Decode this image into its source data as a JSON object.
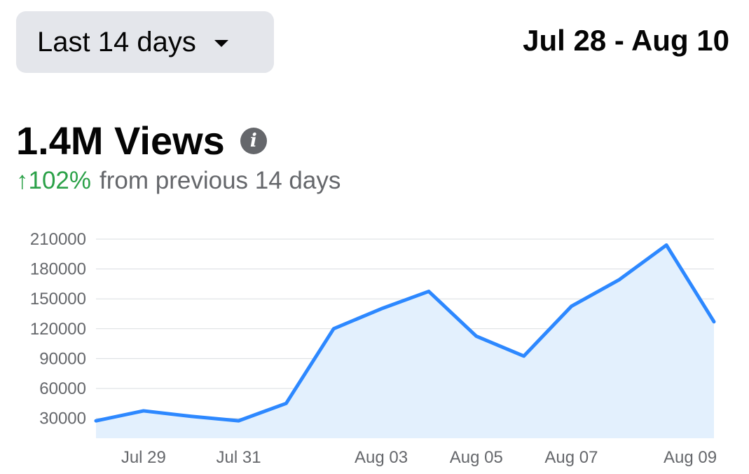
{
  "range_selector": {
    "label": "Last 14 days"
  },
  "date_range": "Jul 28 - Aug 10",
  "metric": {
    "value_label": "1.4M Views"
  },
  "change": {
    "delta": "↑102%",
    "suffix": "from previous 14 days"
  },
  "colors": {
    "line": "#2d88ff",
    "fill": "#e3f0fd",
    "grid": "#dadde1",
    "positive": "#2ba148"
  },
  "icons": {
    "range_caret": "caret-down-icon",
    "info": "info-icon"
  },
  "chart_data": {
    "type": "area",
    "x": [
      "Jul 28",
      "Jul 29",
      "Jul 30",
      "Jul 31",
      "Aug 01",
      "Aug 02",
      "Aug 03",
      "Aug 04",
      "Aug 05",
      "Aug 06",
      "Aug 07",
      "Aug 08",
      "Aug 09",
      "Aug 10"
    ],
    "values": [
      27500,
      37500,
      32000,
      27500,
      45000,
      120000,
      140000,
      157500,
      112500,
      92500,
      142500,
      169000,
      204000,
      127000
    ],
    "yticks": [
      30000,
      60000,
      90000,
      120000,
      150000,
      180000,
      210000
    ],
    "ytick_labels": [
      "30000",
      "60000",
      "90000",
      "120000",
      "150000",
      "180000",
      "210000"
    ],
    "xtick_labels": [
      {
        "label": "Jul 29",
        "index": 1
      },
      {
        "label": "Jul 31",
        "index": 3
      },
      {
        "label": "Aug 03",
        "index": 6
      },
      {
        "label": "Aug 05",
        "index": 8
      },
      {
        "label": "Aug 07",
        "index": 10
      },
      {
        "label": "Aug 09",
        "index": 12.5
      }
    ],
    "ylim": [
      10000,
      210000
    ],
    "grid": true,
    "title": "",
    "xlabel": "",
    "ylabel": ""
  }
}
